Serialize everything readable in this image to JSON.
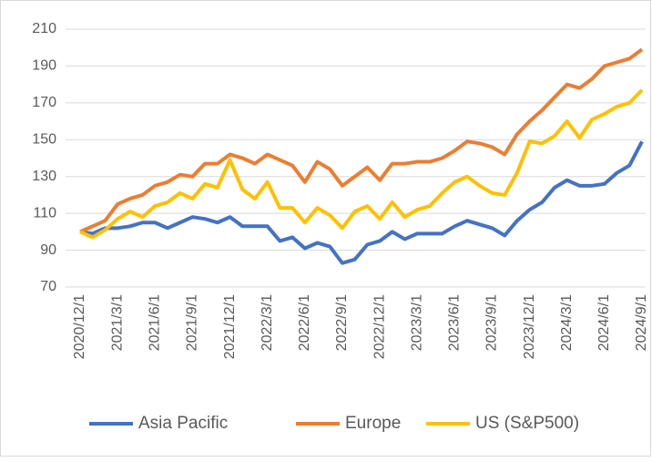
{
  "chart_data": {
    "type": "line",
    "categories": [
      "2020/12/1",
      null,
      null,
      "2021/3/1",
      null,
      null,
      "2021/6/1",
      null,
      null,
      "2021/9/1",
      null,
      null,
      "2021/12/1",
      null,
      null,
      "2022/3/1",
      null,
      null,
      "2022/6/1",
      null,
      null,
      "2022/9/1",
      null,
      null,
      "2022/12/1",
      null,
      null,
      "2023/3/1",
      null,
      null,
      "2023/6/1",
      null,
      null,
      "2023/9/1",
      null,
      null,
      "2023/12/1",
      null,
      null,
      "2024/3/1",
      null,
      null,
      "2024/6/1",
      null,
      null,
      "2024/9/1"
    ],
    "series": [
      {
        "name": "Asia Pacific",
        "color": "#4472c4",
        "values": [
          100,
          99,
          102,
          102,
          103,
          105,
          105,
          102,
          105,
          108,
          107,
          105,
          108,
          103,
          103,
          103,
          95,
          97,
          91,
          94,
          92,
          83,
          85,
          93,
          95,
          100,
          96,
          99,
          99,
          99,
          103,
          106,
          104,
          102,
          98,
          106,
          112,
          116,
          124,
          128,
          125,
          125,
          126,
          132,
          136,
          149
        ]
      },
      {
        "name": "Europe",
        "color": "#ed7d31",
        "values": [
          100,
          103,
          106,
          115,
          118,
          120,
          125,
          127,
          131,
          130,
          137,
          137,
          142,
          140,
          137,
          142,
          139,
          136,
          127,
          138,
          134,
          125,
          130,
          135,
          128,
          137,
          137,
          138,
          138,
          140,
          144,
          149,
          148,
          146,
          142,
          153,
          160,
          166,
          173,
          180,
          178,
          183,
          190,
          192,
          194,
          199
        ]
      },
      {
        "name": "US (S&P500)",
        "color": "#ffc000",
        "values": [
          100,
          97,
          101,
          107,
          111,
          108,
          114,
          116,
          121,
          118,
          126,
          124,
          139,
          123,
          118,
          127,
          113,
          113,
          105,
          113,
          109,
          102,
          111,
          114,
          107,
          116,
          108,
          112,
          114,
          121,
          127,
          130,
          125,
          121,
          120,
          132,
          149,
          148,
          152,
          160,
          151,
          161,
          164,
          168,
          170,
          177
        ]
      }
    ],
    "ylim": [
      70,
      210
    ],
    "yticks": [
      70,
      90,
      110,
      130,
      150,
      170,
      190,
      210
    ],
    "grid": true,
    "legend": "bottom"
  }
}
